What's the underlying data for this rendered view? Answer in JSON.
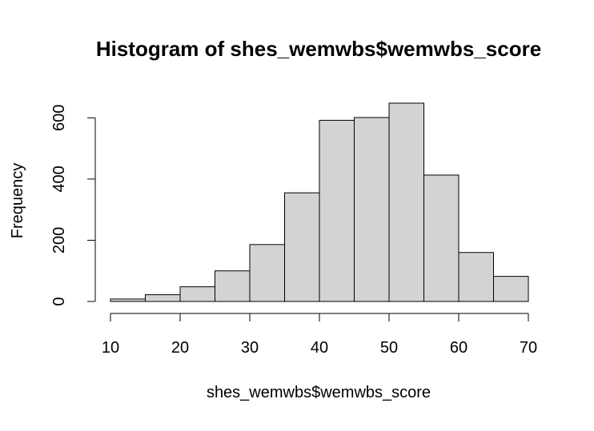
{
  "colors": {
    "background": "#ffffff",
    "bar_fill": "#d3d3d3",
    "bar_stroke": "#000000",
    "axis": "#000000"
  },
  "chart_data": {
    "type": "bar",
    "histogram": true,
    "title": "Histogram of shes_wemwbs$wemwbs_score",
    "xlabel": "shes_wemwbs$wemwbs_score",
    "ylabel": "Frequency",
    "bins": [
      {
        "start": 10,
        "end": 15,
        "count": 8
      },
      {
        "start": 15,
        "end": 20,
        "count": 22
      },
      {
        "start": 20,
        "end": 25,
        "count": 48
      },
      {
        "start": 25,
        "end": 30,
        "count": 100
      },
      {
        "start": 30,
        "end": 35,
        "count": 186
      },
      {
        "start": 35,
        "end": 40,
        "count": 355
      },
      {
        "start": 40,
        "end": 45,
        "count": 592
      },
      {
        "start": 45,
        "end": 50,
        "count": 601
      },
      {
        "start": 50,
        "end": 55,
        "count": 648
      },
      {
        "start": 55,
        "end": 60,
        "count": 413
      },
      {
        "start": 60,
        "end": 65,
        "count": 160
      },
      {
        "start": 65,
        "end": 70,
        "count": 82
      }
    ],
    "xlim": [
      10,
      70
    ],
    "ylim": [
      0,
      648
    ],
    "x_ticks": [
      10,
      20,
      30,
      40,
      50,
      60,
      70
    ],
    "y_ticks": [
      0,
      200,
      400,
      600
    ],
    "grid": false,
    "legend": "none"
  }
}
